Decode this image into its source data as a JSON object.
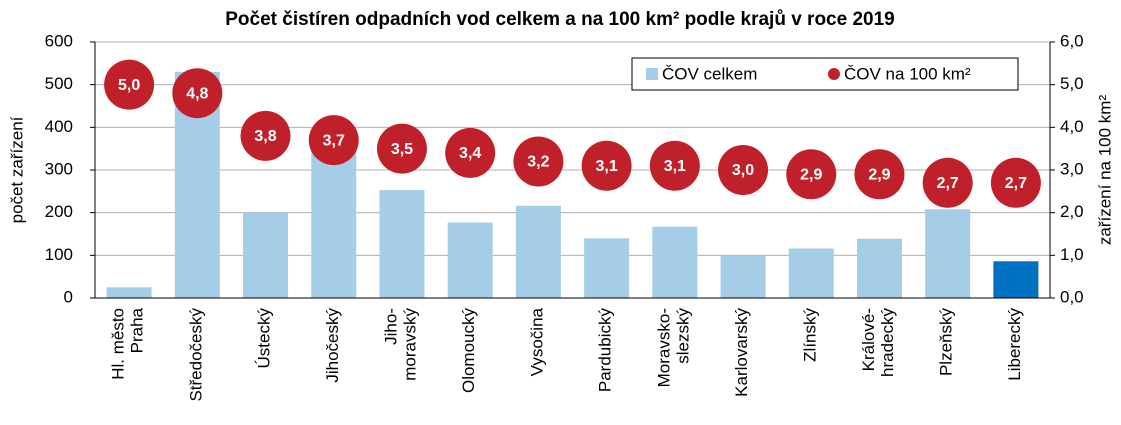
{
  "chart_data": {
    "type": "bar",
    "title": "Počet čistíren odpadních vod celkem a na 100 km² podle krajů v roce 2019",
    "y_label": "počet zařízení",
    "y2_label": "zařízení na 100 km²",
    "categories": [
      "Hl. město\nPraha",
      "Středočeský",
      "Ústecký",
      "Jihočeský",
      "Jiho-\nmoravský",
      "Olomoucký",
      "Vysočina",
      "Pardubický",
      "Moravsko-\nslezský",
      "Karlovarský",
      "Zlínský",
      "Králové-\nhradecký",
      "Plzeňský",
      "Liberecký"
    ],
    "series": [
      {
        "name": "ČOV celkem",
        "type": "bar",
        "color": "#a6cde8",
        "colors": [
          "#a6cde8",
          "#a6cde8",
          "#a6cde8",
          "#a6cde8",
          "#a6cde8",
          "#a6cde8",
          "#a6cde8",
          "#a6cde8",
          "#a6cde8",
          "#a6cde8",
          "#a6cde8",
          "#a6cde8",
          "#a6cde8",
          "#0070c0"
        ],
        "values": [
          25,
          530,
          200,
          350,
          253,
          177,
          216,
          140,
          167,
          100,
          116,
          139,
          208,
          86
        ]
      },
      {
        "name": "ČOV na 100 km²",
        "type": "bubble",
        "axis": "y2",
        "color": "#c0202a",
        "values": [
          5.0,
          4.8,
          3.8,
          3.7,
          3.5,
          3.4,
          3.2,
          3.1,
          3.1,
          3.0,
          2.9,
          2.9,
          2.7,
          2.7
        ],
        "value_labels": [
          "5,0",
          "4,8",
          "3,8",
          "3,7",
          "3,5",
          "3,4",
          "3,2",
          "3,1",
          "3,1",
          "3,0",
          "2,9",
          "2,9",
          "2,7",
          "2,7"
        ]
      }
    ],
    "ylim": [
      0,
      600
    ],
    "yticks": [
      0,
      100,
      200,
      300,
      400,
      500,
      600
    ],
    "y2lim": [
      0,
      6
    ],
    "y2ticks": [
      {
        "value": 0,
        "label": "0,0"
      },
      {
        "value": 1,
        "label": "1,0"
      },
      {
        "value": 2,
        "label": "2,0"
      },
      {
        "value": 3,
        "label": "3,0"
      },
      {
        "value": 4,
        "label": "4,0"
      },
      {
        "value": 5,
        "label": "5,0"
      },
      {
        "value": 6,
        "label": "6,0"
      }
    ],
    "grid": true,
    "legend": "top-right"
  }
}
